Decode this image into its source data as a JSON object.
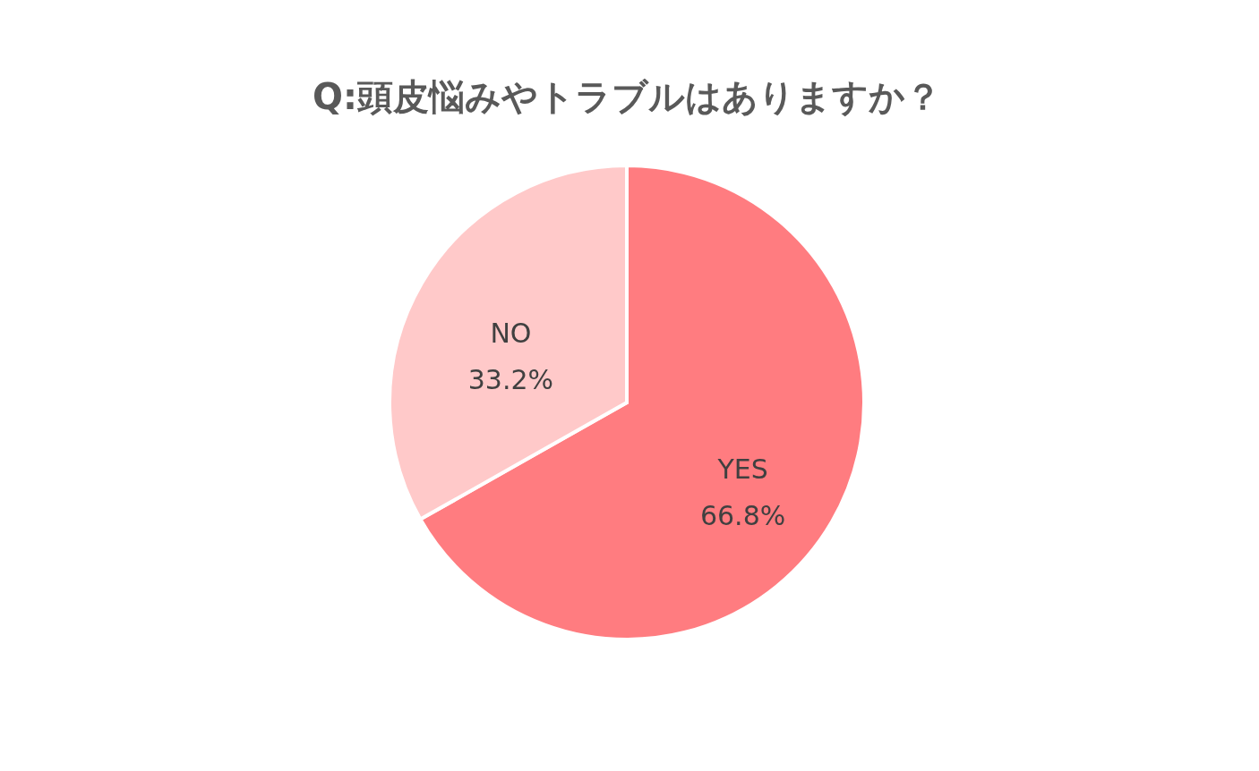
{
  "chart_data": {
    "type": "pie",
    "title": "Q:頭皮悩みやトラブルはありますか？",
    "categories": [
      "YES",
      "NO"
    ],
    "values": [
      66.8,
      33.2
    ],
    "value_labels": [
      "66.8%",
      "33.2%"
    ],
    "colors": [
      "#ff7c80",
      "#ffc9c9"
    ],
    "legend": false
  }
}
